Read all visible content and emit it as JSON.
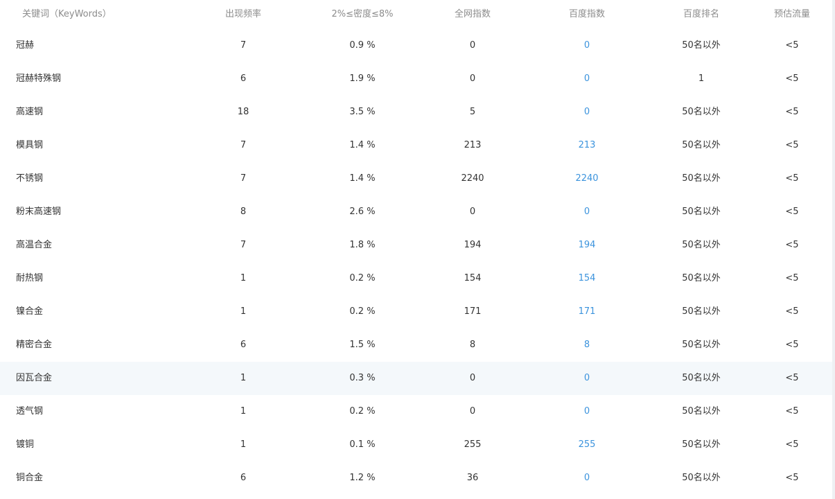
{
  "header": {
    "keyword": "关键词（KeyWords）",
    "frequency": "出现频率",
    "density": "2%≤密度≤8%",
    "all_index": "全网指数",
    "baidu_index": "百度指数",
    "baidu_rank": "百度排名",
    "traffic": "预估流量"
  },
  "colors": {
    "link": "#3b93dd",
    "header_text": "#8c8c8c",
    "highlight_row": "#f4f8fb"
  },
  "rows": [
    {
      "keyword": "冠赫",
      "frequency": "7",
      "density": "0.9 %",
      "all_index": "0",
      "baidu_index": "0",
      "baidu_rank": "50名以外",
      "traffic": "<5"
    },
    {
      "keyword": "冠赫特殊钢",
      "frequency": "6",
      "density": "1.9 %",
      "all_index": "0",
      "baidu_index": "0",
      "baidu_rank": "1",
      "traffic": "<5"
    },
    {
      "keyword": "高速钢",
      "frequency": "18",
      "density": "3.5 %",
      "all_index": "5",
      "baidu_index": "0",
      "baidu_rank": "50名以外",
      "traffic": "<5"
    },
    {
      "keyword": "模具钢",
      "frequency": "7",
      "density": "1.4 %",
      "all_index": "213",
      "baidu_index": "213",
      "baidu_rank": "50名以外",
      "traffic": "<5"
    },
    {
      "keyword": "不锈钢",
      "frequency": "7",
      "density": "1.4 %",
      "all_index": "2240",
      "baidu_index": "2240",
      "baidu_rank": "50名以外",
      "traffic": "<5"
    },
    {
      "keyword": "粉末高速钢",
      "frequency": "8",
      "density": "2.6 %",
      "all_index": "0",
      "baidu_index": "0",
      "baidu_rank": "50名以外",
      "traffic": "<5"
    },
    {
      "keyword": "高温合金",
      "frequency": "7",
      "density": "1.8 %",
      "all_index": "194",
      "baidu_index": "194",
      "baidu_rank": "50名以外",
      "traffic": "<5"
    },
    {
      "keyword": "耐热钢",
      "frequency": "1",
      "density": "0.2 %",
      "all_index": "154",
      "baidu_index": "154",
      "baidu_rank": "50名以外",
      "traffic": "<5"
    },
    {
      "keyword": "镍合金",
      "frequency": "1",
      "density": "0.2 %",
      "all_index": "171",
      "baidu_index": "171",
      "baidu_rank": "50名以外",
      "traffic": "<5"
    },
    {
      "keyword": "精密合金",
      "frequency": "6",
      "density": "1.5 %",
      "all_index": "8",
      "baidu_index": "8",
      "baidu_rank": "50名以外",
      "traffic": "<5"
    },
    {
      "keyword": "因瓦合金",
      "frequency": "1",
      "density": "0.3 %",
      "all_index": "0",
      "baidu_index": "0",
      "baidu_rank": "50名以外",
      "traffic": "<5"
    },
    {
      "keyword": "透气钢",
      "frequency": "1",
      "density": "0.2 %",
      "all_index": "0",
      "baidu_index": "0",
      "baidu_rank": "50名以外",
      "traffic": "<5"
    },
    {
      "keyword": "镀铜",
      "frequency": "1",
      "density": "0.1 %",
      "all_index": "255",
      "baidu_index": "255",
      "baidu_rank": "50名以外",
      "traffic": "<5"
    },
    {
      "keyword": "铜合金",
      "frequency": "6",
      "density": "1.2 %",
      "all_index": "36",
      "baidu_index": "0",
      "baidu_rank": "50名以外",
      "traffic": "<5"
    }
  ]
}
